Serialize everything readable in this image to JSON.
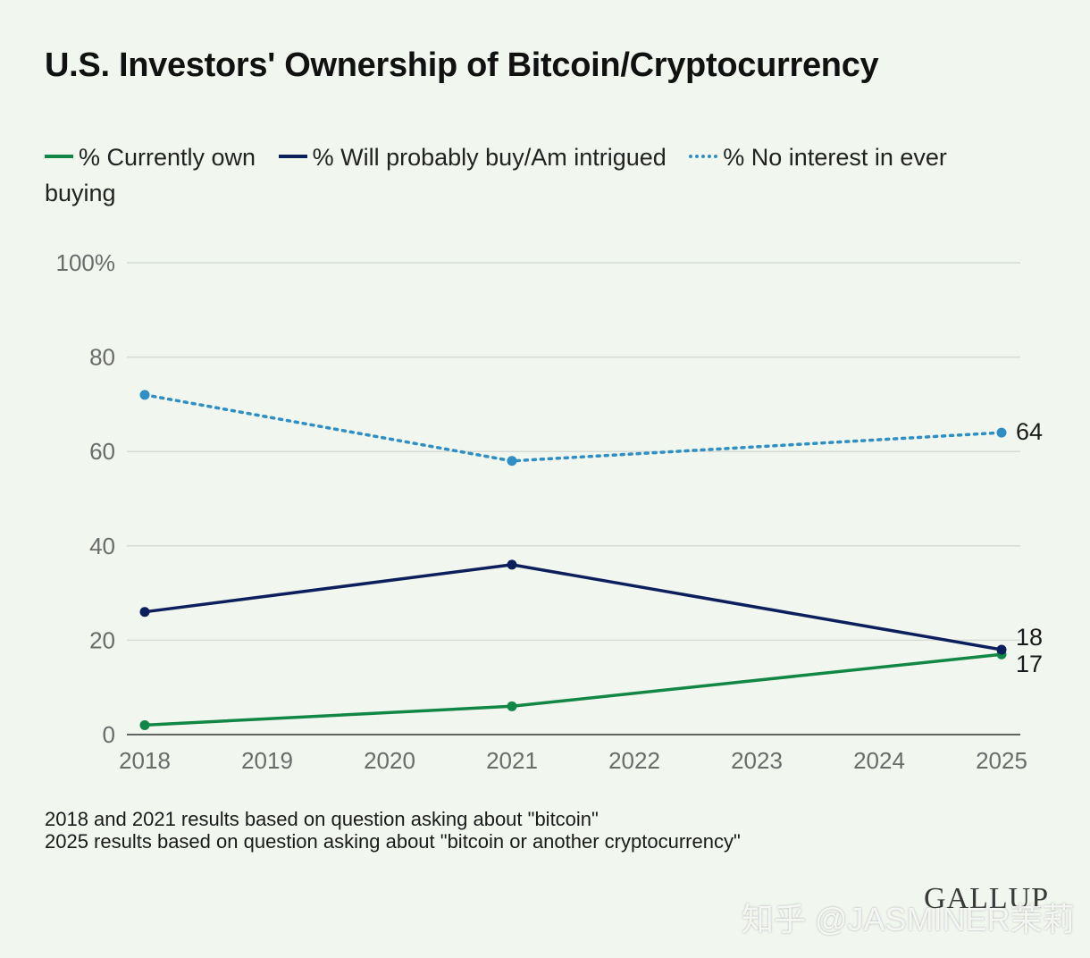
{
  "title": "U.S. Investors' Ownership of Bitcoin/Cryptocurrency",
  "legend": [
    {
      "label": "% Currently own",
      "color": "#128745",
      "style": "solid"
    },
    {
      "label": "% Will probably buy/Am intrigued",
      "color": "#0c1f5c",
      "style": "solid"
    },
    {
      "label": "% No interest in ever buying",
      "color": "#2f8fc4",
      "style": "dotted"
    }
  ],
  "notes": [
    "2018 and 2021 results based on question asking about \"bitcoin\"",
    "2025 results based on question asking about \"bitcoin or another cryptocurrency\""
  ],
  "brand": "GALLUP",
  "watermark": "知乎 @JASMINER茉莉",
  "chart_data": {
    "type": "line",
    "x": [
      2018,
      2019,
      2020,
      2021,
      2022,
      2023,
      2024,
      2025
    ],
    "xlim": [
      2018,
      2025
    ],
    "ylim": [
      0,
      100
    ],
    "yticks": [
      "0",
      "20",
      "40",
      "60",
      "80",
      "100%"
    ],
    "grid": true,
    "legend_position": "top",
    "series": [
      {
        "name": "% Currently own",
        "color": "#128745",
        "style": "solid",
        "points": [
          [
            2018,
            2
          ],
          [
            2021,
            6
          ],
          [
            2025,
            17
          ]
        ],
        "end_label": "17"
      },
      {
        "name": "% Will probably buy/Am intrigued",
        "color": "#0c1f5c",
        "style": "solid",
        "points": [
          [
            2018,
            26
          ],
          [
            2021,
            36
          ],
          [
            2025,
            18
          ]
        ],
        "end_label": "18"
      },
      {
        "name": "% No interest in ever buying",
        "color": "#2f8fc4",
        "style": "dotted",
        "points": [
          [
            2018,
            72
          ],
          [
            2021,
            58
          ],
          [
            2025,
            64
          ]
        ],
        "end_label": "64"
      }
    ]
  }
}
